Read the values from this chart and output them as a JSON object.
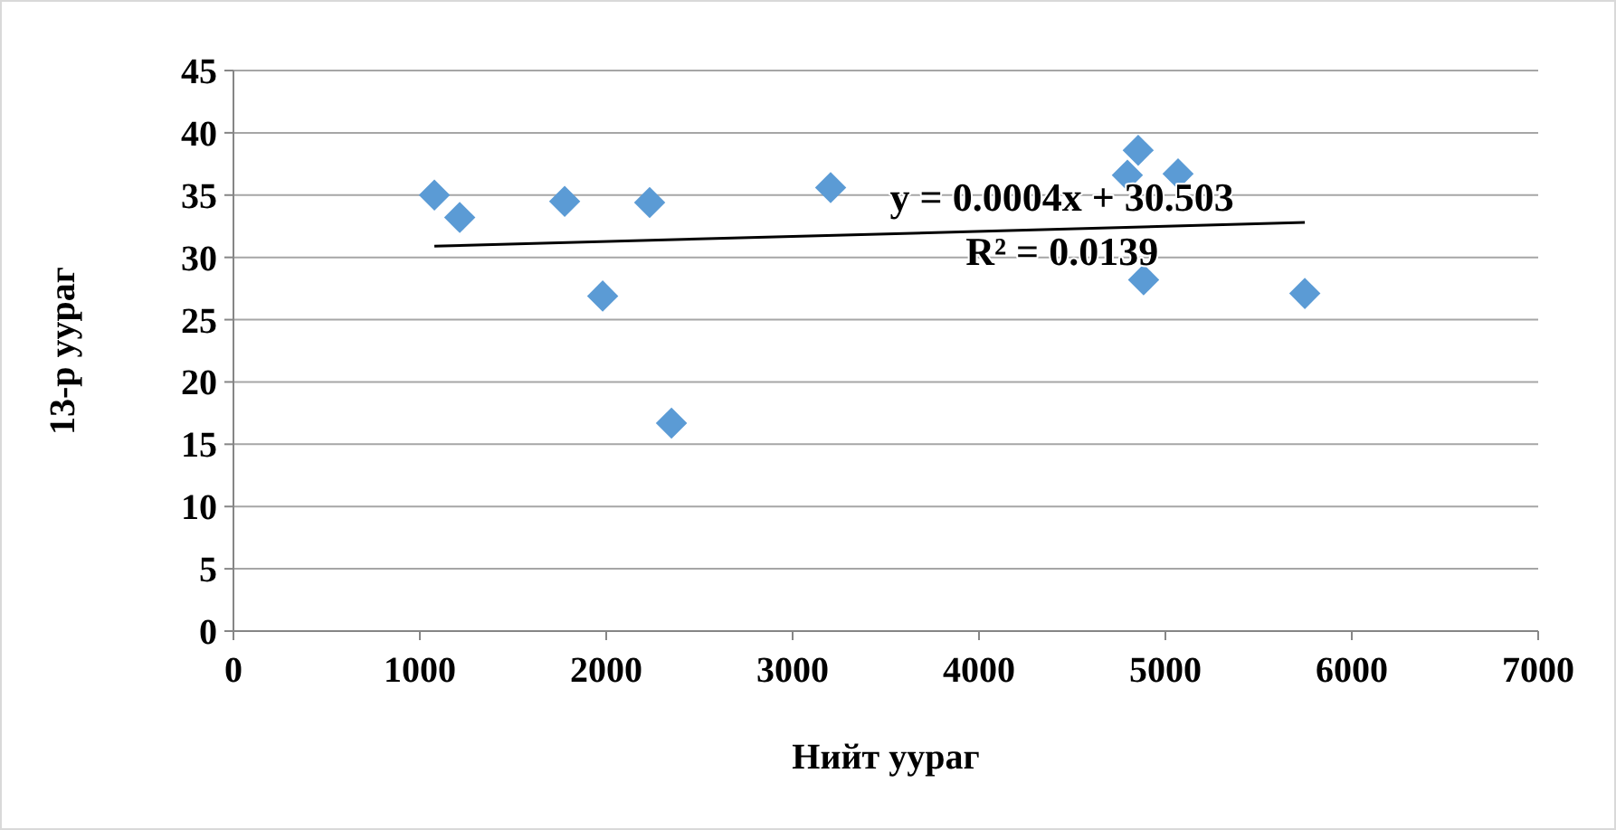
{
  "chart_data": {
    "type": "scatter",
    "xlabel": "Нийт уураг",
    "ylabel": "13-р уураг",
    "xlim": [
      0,
      7000
    ],
    "xticks": [
      0,
      1000,
      2000,
      3000,
      4000,
      5000,
      6000,
      7000
    ],
    "ylim": [
      0,
      45
    ],
    "yticks": [
      0,
      5,
      10,
      15,
      20,
      25,
      30,
      35,
      40,
      45
    ],
    "grid": "y",
    "marker": "diamond",
    "annotations": [
      "y = 0.0004x + 30.503",
      "R² = 0.0139"
    ],
    "series": [
      {
        "color": "#5b9bd5",
        "x": [
          1078,
          1214,
          1777,
          1981,
          2233,
          2350,
          3204,
          4854,
          4796,
          5068,
          4883,
          5748
        ],
        "values": [
          35.0,
          33.2,
          34.5,
          26.9,
          34.4,
          16.7,
          35.6,
          38.6,
          36.6,
          36.7,
          28.2,
          27.1
        ]
      },
      {
        "type": "line",
        "marker": "none",
        "color": "#000000",
        "x": [
          1078,
          5748
        ],
        "values": [
          30.9,
          32.8
        ]
      }
    ]
  }
}
